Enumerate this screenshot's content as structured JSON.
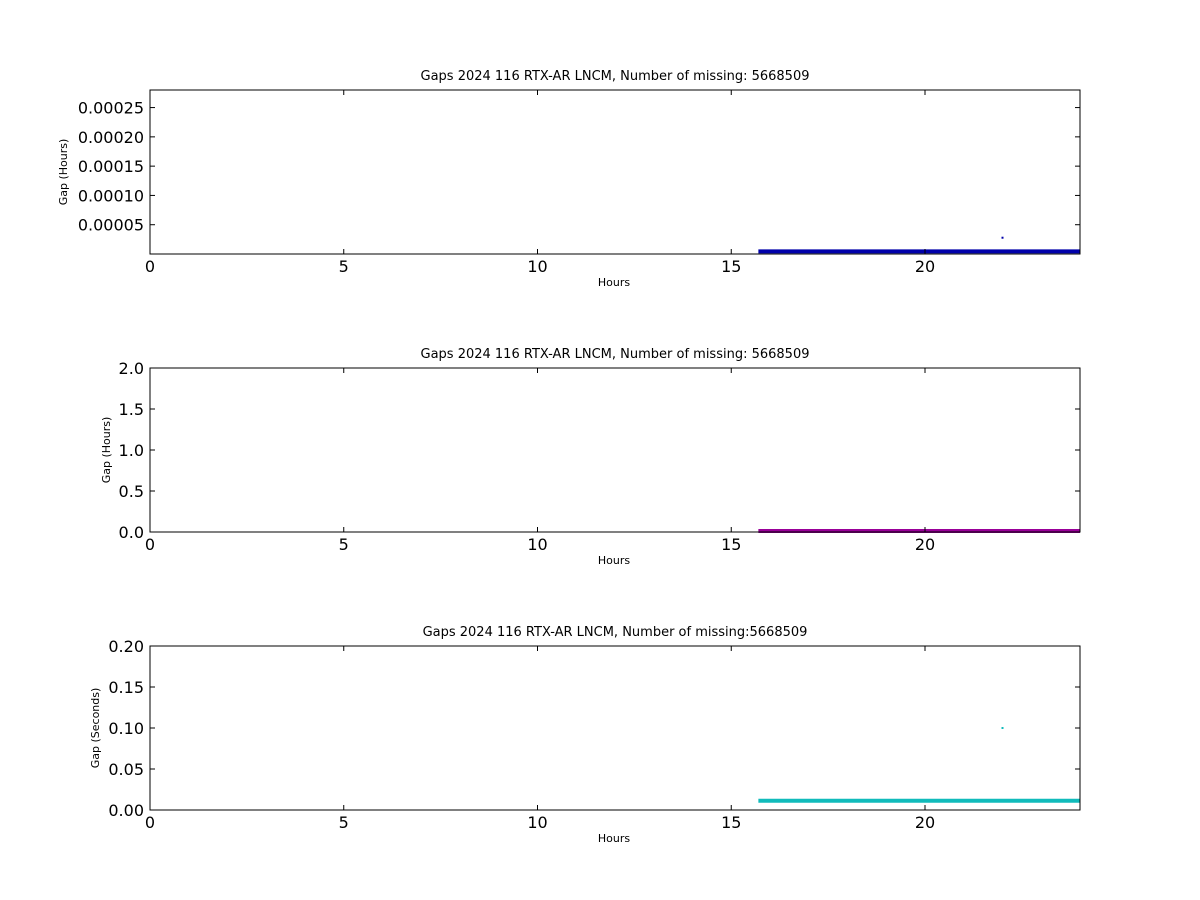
{
  "chart_data": [
    {
      "type": "scatter",
      "title": "Gaps 2024 116 RTX-AR  LNCM, Number of missing: 5668509",
      "xlabel": "Hours",
      "ylabel": "Gap (Hours)",
      "xlim": [
        0,
        24
      ],
      "ylim": [
        0,
        0.00028
      ],
      "xticks": [
        0,
        5,
        10,
        15,
        20
      ],
      "xtick_labels": [
        "0",
        "5",
        "10",
        "15",
        "20"
      ],
      "yticks": [
        5e-05,
        0.0001,
        0.00015,
        0.0002,
        0.00025
      ],
      "ytick_labels": [
        "0.00005",
        "0.00010",
        "0.00015",
        "0.00020",
        "0.00025"
      ],
      "grid": false,
      "color": "#0000aa",
      "series": [
        {
          "segments": [
            {
              "x": [
                15.7,
                24.0
              ],
              "y": [
                2.8e-06,
                2.8e-06
              ]
            }
          ],
          "points": [
            {
              "x": 22.0,
              "y": 2.78e-05
            }
          ]
        }
      ]
    },
    {
      "type": "scatter",
      "title": "Gaps 2024 116 RTX-AR  LNCM, Number of missing: 5668509",
      "xlabel": "Hours",
      "ylabel": "Gap (Hours)",
      "xlim": [
        0,
        24
      ],
      "ylim": [
        0,
        2.0
      ],
      "xticks": [
        0,
        5,
        10,
        15,
        20
      ],
      "xtick_labels": [
        "0",
        "5",
        "10",
        "15",
        "20"
      ],
      "yticks": [
        0.0,
        0.5,
        1.0,
        1.5,
        2.0
      ],
      "ytick_labels": [
        "0.0",
        "0.5",
        "1.0",
        "1.5",
        "2.0"
      ],
      "grid": false,
      "color": "#990099",
      "series": [
        {
          "segments": [
            {
              "x": [
                15.7,
                24.0
              ],
              "y": [
                0.0,
                0.0
              ]
            }
          ],
          "points": []
        }
      ]
    },
    {
      "type": "scatter",
      "title": "Gaps 2024 116 RTX-AR  LNCM, Number of missing:5668509",
      "xlabel": "Hours",
      "ylabel": "Gap (Seconds)",
      "xlim": [
        0,
        24
      ],
      "ylim": [
        0,
        0.2
      ],
      "xticks": [
        0,
        5,
        10,
        15,
        20
      ],
      "xtick_labels": [
        "0",
        "5",
        "10",
        "15",
        "20"
      ],
      "yticks": [
        0.0,
        0.05,
        0.1,
        0.15,
        0.2
      ],
      "ytick_labels": [
        "0.00",
        "0.05",
        "0.10",
        "0.15",
        "0.20"
      ],
      "grid": false,
      "color": "#11bbbb",
      "series": [
        {
          "segments": [
            {
              "x": [
                15.7,
                24.0
              ],
              "y": [
                0.01,
                0.01
              ]
            }
          ],
          "points": [
            {
              "x": 22.0,
              "y": 0.1
            }
          ]
        }
      ]
    }
  ]
}
